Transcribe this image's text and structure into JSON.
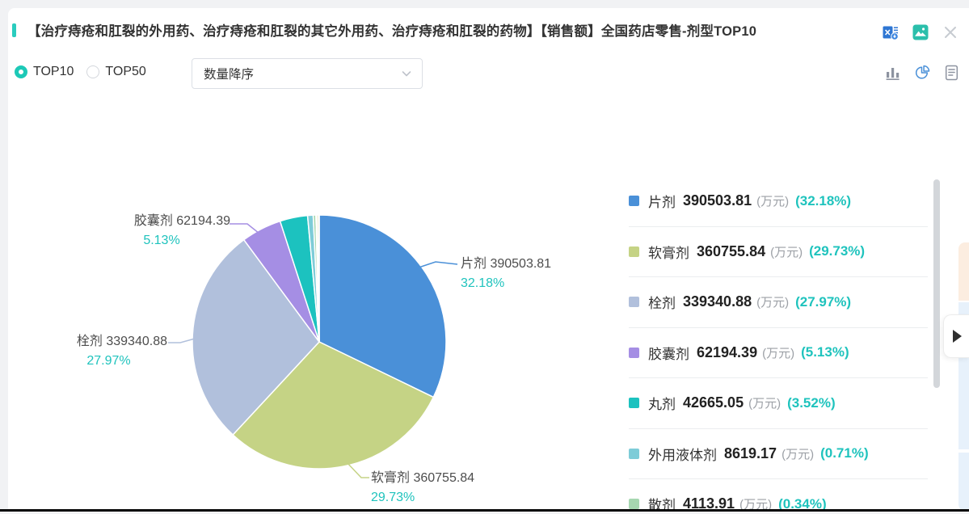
{
  "header": {
    "title": "【治疗痔疮和肛裂的外用药、治疗痔疮和肛裂的其它外用药、治疗痔疮和肛裂的药物】【销售额】全国药店零售-剂型TOP10",
    "accent_color": "#2accbe",
    "icons": [
      "excel-export-icon",
      "save-image-icon",
      "close-icon"
    ]
  },
  "toolbar": {
    "radio_top10_label": "TOP10",
    "radio_top50_label": "TOP50",
    "radio_selected": "TOP10",
    "sort_dropdown_value": "数量降序",
    "view_icons": [
      "bar-chart-view",
      "pie-chart-view",
      "table-view"
    ],
    "active_view": "pie-chart-view",
    "active_view_color": "#4a90d8"
  },
  "chart_data": {
    "type": "pie",
    "unit": "万元",
    "legend_position": "right",
    "start_angle_deg_from_top_cw": 0,
    "slices": [
      {
        "name": "片剂",
        "value": "390503.81",
        "pct": "32.18",
        "color": "#4a90d8"
      },
      {
        "name": "软膏剂",
        "value": "360755.84",
        "pct": "29.73",
        "color": "#c5d385"
      },
      {
        "name": "栓剂",
        "value": "339340.88",
        "pct": "27.97",
        "color": "#b1c0dc"
      },
      {
        "name": "胶囊剂",
        "value": "62194.39",
        "pct": "5.13",
        "color": "#a58ee4"
      },
      {
        "name": "丸剂",
        "value": "42665.05",
        "pct": "3.52",
        "color": "#1cc2bf"
      },
      {
        "name": "外用液体剂",
        "value": "8619.17",
        "pct": "0.71",
        "color": "#7eccd8"
      },
      {
        "name": "散剂",
        "value": "4113.91",
        "pct": "0.34",
        "color": "#a6d7b0"
      },
      {
        "name": "",
        "value": "",
        "pct": "0.12",
        "color": "#8f96d9",
        "estimated": true
      },
      {
        "name": "",
        "value": "",
        "pct": "0.20",
        "color": "#c9bd55",
        "estimated": true
      },
      {
        "name": "",
        "value": "",
        "pct": "0.10",
        "color": "#8296ae",
        "estimated": true
      }
    ],
    "callout_slice_indexes": [
      0,
      1,
      2,
      3
    ],
    "percent_text_color": "#1fc3bd"
  },
  "legend": {
    "unit": "(万元)",
    "visible_rows": 7
  }
}
